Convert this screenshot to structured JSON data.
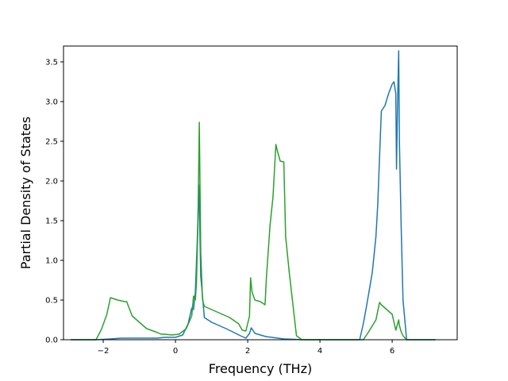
{
  "chart_data": {
    "type": "line",
    "title": "",
    "xlabel": "Frequency (THz)",
    "ylabel": "Partial Density of States",
    "xlim": [
      -3.1,
      7.8
    ],
    "ylim": [
      0,
      3.7
    ],
    "xticks": [
      -2,
      0,
      2,
      4,
      6
    ],
    "yticks": [
      0.0,
      0.5,
      1.0,
      1.5,
      2.0,
      2.5,
      3.0,
      3.5
    ],
    "xtick_labels": [
      "−2",
      "0",
      "2",
      "4",
      "6"
    ],
    "ytick_labels": [
      "0.0",
      "0.5",
      "1.0",
      "1.5",
      "2.0",
      "2.5",
      "3.0",
      "3.5"
    ],
    "grid": false,
    "legend": "none",
    "series": [
      {
        "color": "#1f77b4",
        "x": [
          -2.9,
          -2.2,
          -2.0,
          -1.8,
          -1.5,
          -1.0,
          -0.5,
          -0.3,
          0.0,
          0.2,
          0.35,
          0.45,
          0.5,
          0.55,
          0.6,
          0.65,
          0.7,
          0.8,
          1.0,
          1.4,
          1.8,
          1.95,
          2.05,
          2.1,
          2.2,
          2.5,
          3.0,
          3.3,
          3.5,
          4.5,
          5.1,
          5.2,
          5.3,
          5.45,
          5.55,
          5.6,
          5.65,
          5.7,
          5.8,
          5.9,
          6.0,
          6.05,
          6.1,
          6.12,
          6.15,
          6.18,
          6.2,
          6.25,
          6.3,
          6.4,
          6.5,
          7.2
        ],
        "y": [
          0.0,
          0.0,
          0.005,
          0.01,
          0.02,
          0.02,
          0.02,
          0.03,
          0.03,
          0.06,
          0.2,
          0.4,
          0.38,
          0.6,
          1.2,
          1.95,
          0.8,
          0.28,
          0.22,
          0.14,
          0.05,
          0.02,
          0.08,
          0.15,
          0.08,
          0.04,
          0.01,
          0.005,
          0.0,
          0.0,
          0.0,
          0.2,
          0.45,
          0.85,
          1.3,
          1.7,
          2.3,
          2.88,
          2.95,
          3.1,
          3.22,
          3.25,
          3.1,
          2.15,
          3.0,
          3.64,
          2.5,
          1.4,
          0.5,
          0.0,
          0.0,
          0.0
        ]
      },
      {
        "color": "#2ca02c",
        "x": [
          -2.9,
          -2.2,
          -2.05,
          -1.9,
          -1.8,
          -1.6,
          -1.4,
          -1.35,
          -1.2,
          -0.8,
          -0.5,
          -0.4,
          -0.3,
          -0.1,
          0.1,
          0.3,
          0.45,
          0.5,
          0.55,
          0.58,
          0.62,
          0.66,
          0.7,
          0.75,
          0.8,
          1.0,
          1.5,
          1.75,
          1.85,
          1.95,
          2.05,
          2.08,
          2.12,
          2.2,
          2.35,
          2.48,
          2.52,
          2.62,
          2.7,
          2.78,
          2.82,
          2.9,
          3.0,
          3.05,
          3.15,
          3.35,
          3.5,
          5.0,
          5.2,
          5.35,
          5.55,
          5.65,
          5.7,
          5.8,
          6.0,
          6.1,
          6.18,
          6.2,
          6.25,
          6.3,
          6.4,
          6.5,
          7.2
        ],
        "y": [
          0.0,
          0.0,
          0.13,
          0.32,
          0.53,
          0.5,
          0.48,
          0.48,
          0.3,
          0.14,
          0.09,
          0.07,
          0.07,
          0.06,
          0.07,
          0.14,
          0.3,
          0.55,
          0.5,
          0.7,
          1.4,
          2.74,
          1.1,
          0.5,
          0.42,
          0.38,
          0.28,
          0.2,
          0.12,
          0.11,
          0.3,
          0.78,
          0.6,
          0.5,
          0.48,
          0.44,
          0.8,
          1.45,
          1.8,
          2.46,
          2.38,
          2.25,
          2.24,
          1.3,
          0.85,
          0.05,
          0.0,
          0.0,
          0.0,
          0.1,
          0.25,
          0.47,
          0.44,
          0.4,
          0.32,
          0.12,
          0.25,
          0.18,
          0.1,
          0.05,
          0.0,
          0.0,
          0.0
        ]
      }
    ]
  }
}
